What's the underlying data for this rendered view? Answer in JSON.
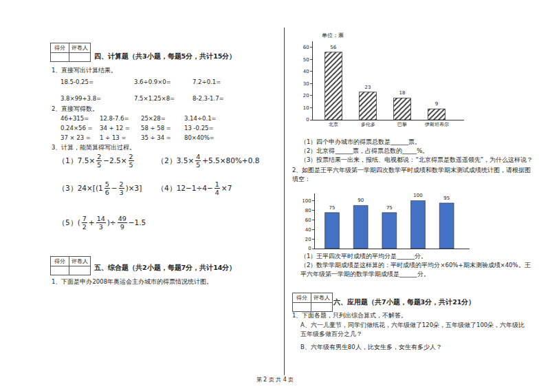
{
  "document": {
    "section4": {
      "score_box": [
        "得分",
        "评卷人"
      ],
      "heading": "四、计算题（共3小题，每题5分，共计15分）",
      "q1": {
        "prompt": "1、直接写出计算结果。",
        "rows": [
          [
            "18.5-0.25=",
            "3.6÷0.9×0=",
            "7.2÷0.1="
          ],
          [
            "3.8×99+3.8=",
            "7.5×1.25×8=",
            "8-2.3-1.7="
          ]
        ]
      },
      "q2": {
        "prompt": "2、直接写得数。",
        "rows": [
          [
            "46+315=",
            "12.8-7.6=",
            "25×28=",
            "3.14÷0.1="
          ],
          [
            "0.24×56 =",
            "34 + 12 =",
            "58 ÷ 58 =",
            "13 -0.25="
          ],
          [
            "37 × 23 =",
            "1 ÷ 13 =",
            "35 ÷ 34 =",
            "80×40%="
          ]
        ]
      },
      "q3": {
        "prompt": "3、计算，能简算得写出过程。",
        "items": [
          {
            "label": "（1）",
            "expr": [
              "7.5×",
              {
                "n": "2",
                "d": "5"
              },
              "−2.5×",
              {
                "n": "2",
                "d": "5"
              }
            ]
          },
          {
            "label": "（2）",
            "expr": [
              "3.5×",
              {
                "n": "4",
                "d": "5"
              },
              "+5.5×80%+0.8"
            ]
          },
          {
            "label": "（3）",
            "expr": [
              "24×[(",
              {
                "w": "1",
                "n": "5",
                "d": "6"
              },
              "−",
              {
                "n": "2",
                "d": "3"
              },
              ")×3]"
            ]
          },
          {
            "label": "（4）",
            "expr": [
              "12−1÷4−",
              {
                "n": "1",
                "d": "4"
              },
              "×7"
            ]
          },
          {
            "label": "（5）",
            "expr": [
              "(",
              {
                "n": "7",
                "d": "2"
              },
              "+",
              {
                "n": "14",
                "d": "3"
              },
              ")÷",
              {
                "n": "49",
                "d": "9"
              },
              "−1.5"
            ]
          }
        ]
      }
    },
    "section5": {
      "score_box": [
        "得分",
        "评卷人"
      ],
      "heading": "五、综合题（共2小题，每题7分，共计14分）",
      "q1": "1、下面是申办2008年奥运会主办城市的得票情况统计图。",
      "chart1_questions": [
        "（1）四个申办城市的得票总数是______票。",
        "（2）北京得______票，占得票总数的_____%。",
        "（3）投票结果一出来，报纸、电视都说：“北京得票是数遥遥领先”，为什么这样说？"
      ],
      "q2": "2、如图是王平六年级第一学期四次数学平时成绩和数学期末测试成绩统计图，请根据图填空：",
      "chart2_questions": [
        "（1）王平四次平时成绩的平均分是______分。",
        "（2）数学学期成绩是这样算的：平时成绩的平均分×60%+期末测验成绩×40%。王平六年级第一学期的数学学期成绩是______分。"
      ]
    },
    "section6": {
      "score_box": [
        "得分",
        "评卷人"
      ],
      "heading": "六、应用题（共7小题，每题3分，共计21分）",
      "q1": "1、下面各题，只列出综合算式，不解答。",
      "a": "A、六一儿童节，同学们做纸花，六年级做了120朵，五年级做了100朵，六年级比五年级多做百分之几？",
      "b": "B、六年级有男生80人，比女生多，女生有多少人？"
    },
    "footer": "第 2 页 共 4 页"
  },
  "chart_data": [
    {
      "type": "bar",
      "y_label": "单位：票",
      "categories": [
        "北京",
        "多伦多",
        "巴黎",
        "伊斯坦布尔"
      ],
      "values": [
        56,
        23,
        18,
        9
      ],
      "color": "#333333",
      "marker": "hatched",
      "ylim": [
        0,
        65
      ],
      "yticks": [
        0,
        10,
        20,
        30,
        40,
        50,
        60
      ],
      "grid": false,
      "data_labels": true
    },
    {
      "type": "bar",
      "categories": [
        null,
        null,
        null,
        null,
        null
      ],
      "values": [
        75,
        90,
        75,
        100,
        95
      ],
      "color": "#4472c4",
      "ylim": [
        0,
        115
      ],
      "yticks": [
        0,
        20,
        40,
        60,
        80,
        100
      ],
      "grid": false,
      "data_labels": true,
      "tick_labels": "y"
    }
  ]
}
